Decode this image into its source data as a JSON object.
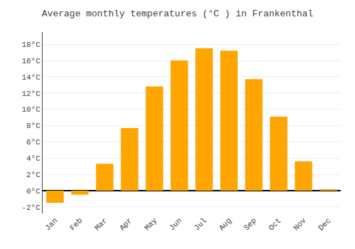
{
  "chart_data": {
    "type": "bar",
    "title": "Average monthly temperatures (°C ) in Frankenthal",
    "categories": [
      "Jan",
      "Feb",
      "Mar",
      "Apr",
      "May",
      "Jun",
      "Jul",
      "Aug",
      "Sep",
      "Oct",
      "Nov",
      "Dec"
    ],
    "values": [
      -1.5,
      -0.5,
      3.3,
      7.7,
      12.8,
      16.0,
      17.5,
      17.2,
      13.7,
      9.1,
      3.6,
      0.1
    ],
    "color": "#FFA500",
    "ylim": [
      -2.8,
      19.5
    ],
    "yticks": [
      {
        "value": -2,
        "label": "-2°C"
      },
      {
        "value": 0,
        "label": "0°C"
      },
      {
        "value": 2,
        "label": "2°C"
      },
      {
        "value": 4,
        "label": "4°C"
      },
      {
        "value": 6,
        "label": "6°C"
      },
      {
        "value": 8,
        "label": "8°C"
      },
      {
        "value": 10,
        "label": "10°C"
      },
      {
        "value": 12,
        "label": "12°C"
      },
      {
        "value": 14,
        "label": "14°C"
      },
      {
        "value": 16,
        "label": "16°C"
      },
      {
        "value": 18,
        "label": "18°C"
      }
    ],
    "grid": true
  }
}
